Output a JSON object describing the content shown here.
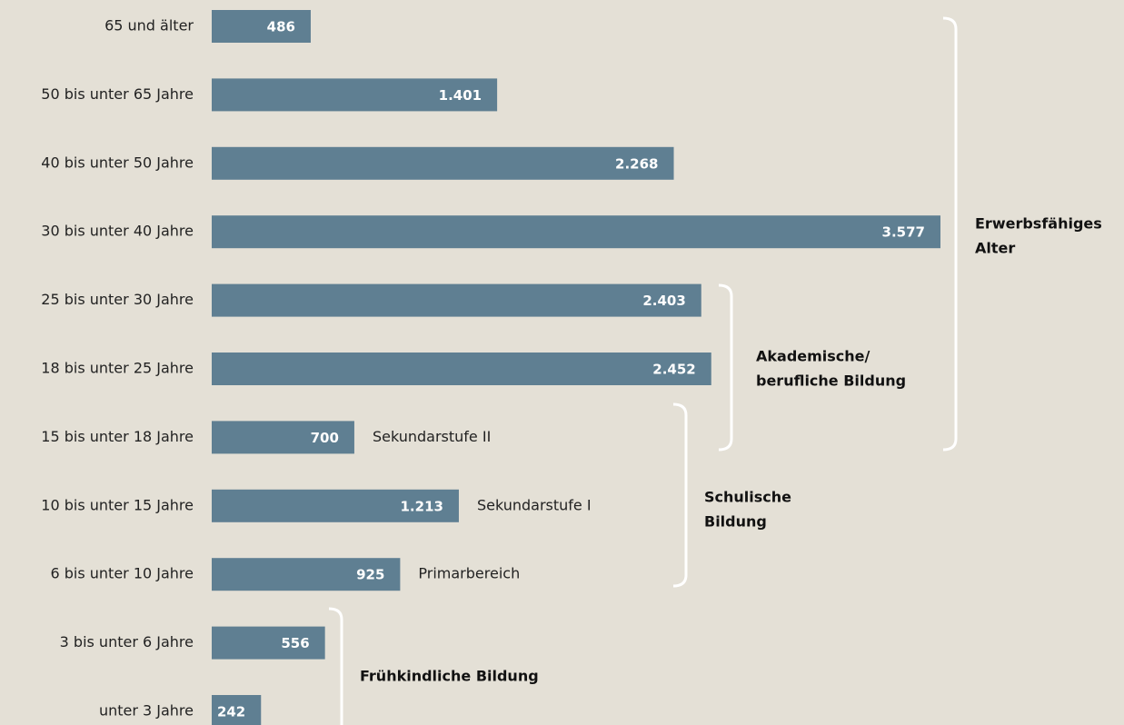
{
  "chart_data": {
    "type": "bar",
    "orientation": "horizontal",
    "color": "#5f7f92",
    "categories": [
      "65 und älter",
      "50 bis unter 65 Jahre",
      "40 bis unter 50 Jahre",
      "30 bis unter 40 Jahre",
      "25 bis unter 30 Jahre",
      "18 bis unter 25 Jahre",
      "15 bis unter 18 Jahre",
      "10 bis unter 15 Jahre",
      "6 bis unter 10 Jahre",
      "3 bis unter 6 Jahre",
      "unter 3 Jahre"
    ],
    "values": [
      486,
      1401,
      2268,
      3577,
      2403,
      2452,
      700,
      1213,
      925,
      556,
      242
    ],
    "value_labels": [
      "486",
      "1.401",
      "2.268",
      "3.577",
      "2.403",
      "2.452",
      "700",
      "1.213",
      "925",
      "556",
      "242"
    ],
    "annotations": [
      null,
      null,
      null,
      null,
      null,
      null,
      "Sekundarstufe II",
      "Sekundarstufe I",
      "Primarbereich",
      null,
      null
    ],
    "groups": [
      {
        "label": [
          "Erwerbsfähiges",
          "Alter"
        ]
      },
      {
        "label": [
          "Akademische/",
          "berufliche Bildung"
        ]
      },
      {
        "label": [
          "Schulische",
          "Bildung"
        ]
      },
      {
        "label": [
          "Frühkindliche Bildung"
        ]
      }
    ]
  }
}
